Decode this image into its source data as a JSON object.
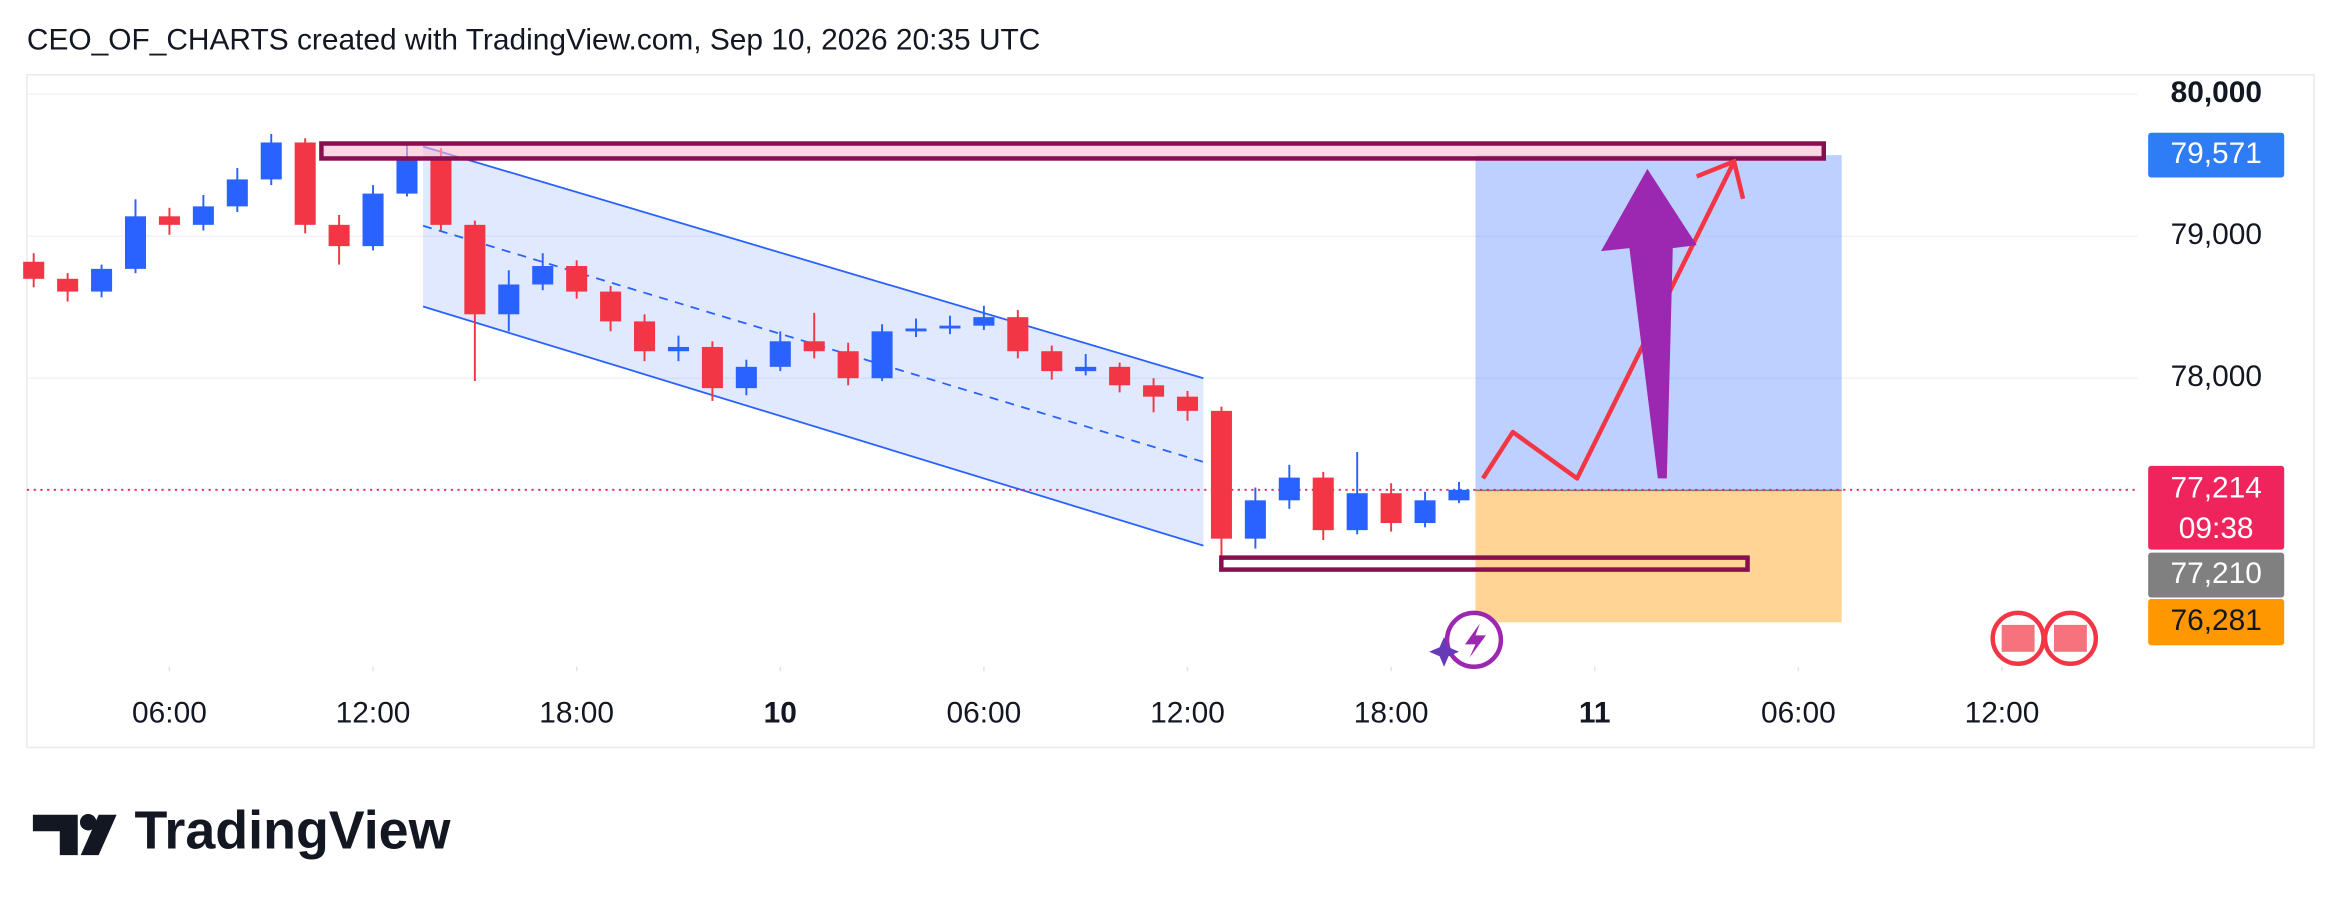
{
  "header": "CEO_OF_CHARTS created with TradingView.com, Sep 10, 2026 20:35 UTC",
  "brand": "TradingView",
  "chart_data": {
    "type": "candlestick",
    "x": [
      2,
      3,
      4,
      5,
      6,
      7,
      8,
      9,
      10,
      11,
      12,
      13,
      14,
      15,
      16,
      17,
      18,
      19,
      20,
      21,
      22,
      23,
      24,
      25,
      26,
      27,
      28,
      29,
      30,
      31,
      32,
      33,
      34,
      35,
      36,
      37,
      38,
      39,
      40,
      41,
      42,
      43,
      44
    ],
    "open": [
      78820,
      78700,
      78610,
      78770,
      79140,
      79080,
      79210,
      79400,
      79660,
      79080,
      78930,
      79300,
      79560,
      79080,
      78450,
      78660,
      78790,
      78610,
      78400,
      78190,
      78220,
      77930,
      78080,
      78260,
      78190,
      78000,
      78330,
      78350,
      78370,
      78430,
      78190,
      78050,
      78080,
      77950,
      77870,
      77770,
      76870,
      77140,
      77300,
      76930,
      77190,
      76980,
      77140
    ],
    "high": [
      78880,
      78740,
      78800,
      79260,
      79200,
      79290,
      79480,
      79720,
      79690,
      79150,
      79360,
      79640,
      79620,
      79110,
      78760,
      78880,
      78830,
      78650,
      78450,
      78300,
      78260,
      78130,
      78330,
      78460,
      78250,
      78380,
      78420,
      78440,
      78510,
      78480,
      78230,
      78170,
      78110,
      78000,
      77910,
      77800,
      77230,
      77390,
      77340,
      77480,
      77260,
      77200,
      77270
    ],
    "low": [
      78640,
      78540,
      78570,
      78740,
      79010,
      79040,
      79170,
      79360,
      79020,
      78800,
      78900,
      79280,
      79040,
      77980,
      78330,
      78620,
      78560,
      78330,
      78120,
      78120,
      77840,
      77880,
      78050,
      78140,
      77950,
      77980,
      78290,
      78310,
      78340,
      78140,
      77990,
      78020,
      77900,
      77760,
      77700,
      76650,
      76800,
      77080,
      76860,
      76900,
      76920,
      76950,
      77120
    ],
    "close": [
      78700,
      78610,
      78770,
      79140,
      79080,
      79210,
      79400,
      79660,
      79080,
      78930,
      79300,
      79560,
      79080,
      78450,
      78660,
      78790,
      78610,
      78400,
      78190,
      78220,
      77930,
      78080,
      78260,
      78190,
      78000,
      78330,
      78350,
      78370,
      78430,
      78190,
      78050,
      78080,
      77950,
      77870,
      77770,
      76870,
      77140,
      77300,
      76930,
      77190,
      76980,
      77140,
      77214
    ],
    "up_color": "#2962ff",
    "down_color": "#f23645",
    "xlim": [
      1.8,
      64
    ],
    "xticks": [
      {
        "value": 6,
        "label": "06:00"
      },
      {
        "value": 12,
        "label": "12:00"
      },
      {
        "value": 18,
        "label": "18:00"
      },
      {
        "value": 24,
        "label": "10"
      },
      {
        "value": 30,
        "label": "06:00"
      },
      {
        "value": 36,
        "label": "12:00"
      },
      {
        "value": 42,
        "label": "18:00"
      },
      {
        "value": 48,
        "label": "11"
      },
      {
        "value": 54,
        "label": "06:00"
      },
      {
        "value": 60,
        "label": "12:00"
      }
    ],
    "ylim": [
      75968,
      80137
    ],
    "yticks": [
      {
        "value": 80000,
        "label": "80,000"
      },
      {
        "value": 79000,
        "label": "79,000"
      },
      {
        "value": 78000,
        "label": "78,000"
      }
    ],
    "grid": true,
    "price_labels": [
      {
        "value": 79571,
        "label": "79,571",
        "color": "#2e7cf6"
      },
      {
        "value": 77214,
        "label": "77,214",
        "color": "#f0245d"
      },
      {
        "value": 77210,
        "label": "77,210",
        "color": "#808080"
      },
      {
        "value": 76281,
        "label": "76,281",
        "color": "#ff9800"
      }
    ],
    "countdown": "09:38"
  }
}
